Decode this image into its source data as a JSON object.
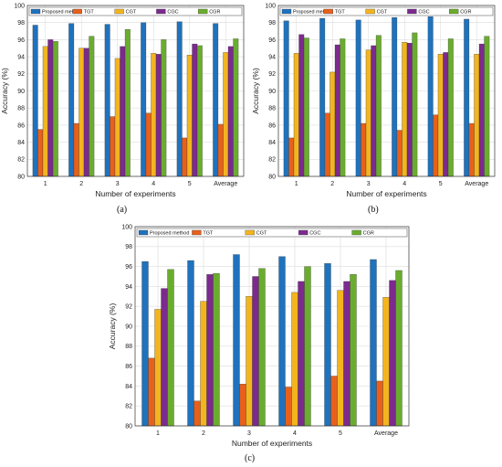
{
  "colors": {
    "Proposed method": "#1f72bd",
    "TGT": "#e8601c",
    "CGT": "#f2b51f",
    "CGC": "#7c2a8e",
    "CGR": "#6aad2e"
  },
  "panel_labels": [
    "(a)",
    "(b)",
    "(c)"
  ],
  "chart_data": [
    {
      "type": "bar",
      "categories": [
        "1",
        "2",
        "3",
        "4",
        "5",
        "Average"
      ],
      "xlabel": "Number of experiments",
      "ylabel": "Accuracy (%)",
      "ylim": [
        80,
        100
      ],
      "yticks": [
        80,
        82,
        84,
        86,
        88,
        90,
        92,
        94,
        96,
        98,
        100
      ],
      "grid": true,
      "legend": "top",
      "series": [
        {
          "name": "Proposed method",
          "values": [
            97.7,
            97.9,
            97.8,
            98.0,
            98.1,
            97.9
          ]
        },
        {
          "name": "TGT",
          "values": [
            85.5,
            86.2,
            87.0,
            87.4,
            84.5,
            86.1
          ]
        },
        {
          "name": "CGT",
          "values": [
            95.2,
            95.0,
            93.8,
            94.4,
            94.2,
            94.5
          ]
        },
        {
          "name": "CGC",
          "values": [
            96.0,
            95.0,
            95.2,
            94.3,
            95.5,
            95.2
          ]
        },
        {
          "name": "CGR",
          "values": [
            95.8,
            96.4,
            97.2,
            96.0,
            95.3,
            96.1
          ]
        }
      ]
    },
    {
      "type": "bar",
      "categories": [
        "1",
        "2",
        "3",
        "4",
        "5",
        "Average"
      ],
      "xlabel": "Number of experiments",
      "ylabel": "Accuracy (%)",
      "ylim": [
        80,
        100
      ],
      "yticks": [
        80,
        82,
        84,
        86,
        88,
        90,
        92,
        94,
        96,
        98,
        100
      ],
      "grid": true,
      "legend": "top",
      "series": [
        {
          "name": "Proposed method",
          "values": [
            98.2,
            98.5,
            98.3,
            98.6,
            98.7,
            98.4
          ]
        },
        {
          "name": "TGT",
          "values": [
            84.5,
            87.4,
            86.2,
            85.4,
            87.2,
            86.2
          ]
        },
        {
          "name": "CGT",
          "values": [
            94.4,
            92.2,
            94.8,
            95.7,
            94.3,
            94.3
          ]
        },
        {
          "name": "CGC",
          "values": [
            96.6,
            95.4,
            95.3,
            95.6,
            94.5,
            95.5
          ]
        },
        {
          "name": "CGR",
          "values": [
            96.2,
            96.1,
            96.5,
            96.8,
            96.1,
            96.4
          ]
        }
      ]
    },
    {
      "type": "bar",
      "categories": [
        "1",
        "2",
        "3",
        "4",
        "5",
        "Average"
      ],
      "xlabel": "Number of experiments",
      "ylabel": "Accuracy (%)",
      "ylim": [
        80,
        100
      ],
      "yticks": [
        80,
        82,
        84,
        86,
        88,
        90,
        92,
        94,
        96,
        98,
        100
      ],
      "grid": true,
      "legend": "top",
      "series": [
        {
          "name": "Proposed method",
          "values": [
            96.5,
            96.6,
            97.2,
            97.0,
            96.3,
            96.7
          ]
        },
        {
          "name": "TGT",
          "values": [
            86.8,
            82.5,
            84.2,
            83.9,
            85.0,
            84.5
          ]
        },
        {
          "name": "CGT",
          "values": [
            91.7,
            92.5,
            93.0,
            93.4,
            93.6,
            92.9
          ]
        },
        {
          "name": "CGC",
          "values": [
            93.8,
            95.2,
            95.0,
            94.5,
            94.5,
            94.6
          ]
        },
        {
          "name": "CGR",
          "values": [
            95.7,
            95.3,
            95.8,
            96.0,
            95.2,
            95.6
          ]
        }
      ]
    }
  ]
}
